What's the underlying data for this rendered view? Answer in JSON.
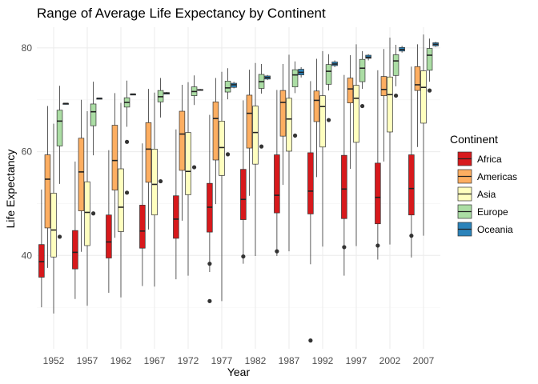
{
  "chart_data": {
    "type": "box",
    "title": "Range of Average Life Expectancy by Continent",
    "xlabel": "Year",
    "ylabel": "Life Expectancy",
    "ylim": [
      22,
      84
    ],
    "yticks": [
      40,
      60,
      80
    ],
    "grid": true,
    "legend_position": "right",
    "legend_title": "Continent",
    "categories": [
      "1952",
      "1957",
      "1962",
      "1967",
      "1972",
      "1977",
      "1982",
      "1987",
      "1992",
      "1997",
      "2002",
      "2007"
    ],
    "series": [
      {
        "name": "Africa",
        "color": "#d7191c",
        "boxes": [
          {
            "min": 30.0,
            "q1": 35.8,
            "median": 38.8,
            "q3": 42.1,
            "max": 52.7,
            "outliers": []
          },
          {
            "min": 31.6,
            "q1": 37.4,
            "median": 40.6,
            "q3": 44.8,
            "max": 58.1,
            "outliers": []
          },
          {
            "min": 32.8,
            "q1": 39.5,
            "median": 42.6,
            "q3": 47.8,
            "max": 60.3,
            "outliers": []
          },
          {
            "min": 34.1,
            "q1": 41.4,
            "median": 44.7,
            "q3": 49.7,
            "max": 61.6,
            "outliers": []
          },
          {
            "min": 35.4,
            "q1": 43.3,
            "median": 47.0,
            "q3": 51.5,
            "max": 64.3,
            "outliers": []
          },
          {
            "min": 36.8,
            "q1": 44.5,
            "median": 49.3,
            "q3": 53.9,
            "max": 67.1,
            "outliers": [
              31.2,
              38.4
            ]
          },
          {
            "min": 38.4,
            "q1": 46.9,
            "median": 50.8,
            "q3": 56.6,
            "max": 69.9,
            "outliers": [
              39.8
            ]
          },
          {
            "min": 39.9,
            "q1": 48.2,
            "median": 51.6,
            "q3": 59.4,
            "max": 71.9,
            "outliers": [
              40.8
            ]
          },
          {
            "min": 38.3,
            "q1": 48.0,
            "median": 52.4,
            "q3": 59.8,
            "max": 73.6,
            "outliers": [
              23.6
            ]
          },
          {
            "min": 36.1,
            "q1": 47.1,
            "median": 52.8,
            "q3": 59.3,
            "max": 74.8,
            "outliers": [
              41.6
            ]
          },
          {
            "min": 39.2,
            "q1": 46.1,
            "median": 51.2,
            "q3": 57.8,
            "max": 75.7,
            "outliers": [
              41.9
            ]
          },
          {
            "min": 39.6,
            "q1": 47.8,
            "median": 52.9,
            "q3": 59.4,
            "max": 76.4,
            "outliers": [
              43.8
            ]
          }
        ]
      },
      {
        "name": "Americas",
        "color": "#fdae61",
        "boxes": [
          {
            "min": 37.6,
            "q1": 45.3,
            "median": 54.7,
            "q3": 59.4,
            "max": 68.8,
            "outliers": []
          },
          {
            "min": 40.7,
            "q1": 48.6,
            "median": 56.1,
            "q3": 62.6,
            "max": 70.0,
            "outliers": []
          },
          {
            "min": 43.4,
            "q1": 52.6,
            "median": 58.3,
            "q3": 65.1,
            "max": 71.3,
            "outliers": []
          },
          {
            "min": 45.0,
            "q1": 54.1,
            "median": 60.5,
            "q3": 65.6,
            "max": 72.1,
            "outliers": []
          },
          {
            "min": 46.7,
            "q1": 56.4,
            "median": 63.4,
            "q3": 67.8,
            "max": 72.9,
            "outliers": []
          },
          {
            "min": 49.9,
            "q1": 58.4,
            "median": 66.4,
            "q3": 69.6,
            "max": 74.2,
            "outliers": []
          },
          {
            "min": 51.5,
            "q1": 60.7,
            "median": 67.4,
            "q3": 70.9,
            "max": 75.8,
            "outliers": []
          },
          {
            "min": 53.6,
            "q1": 63.0,
            "median": 69.5,
            "q3": 71.8,
            "max": 76.9,
            "outliers": []
          },
          {
            "min": 55.1,
            "q1": 65.8,
            "median": 69.9,
            "q3": 71.7,
            "max": 77.9,
            "outliers": []
          },
          {
            "min": 56.7,
            "q1": 69.4,
            "median": 72.1,
            "q3": 74.2,
            "max": 78.6,
            "outliers": []
          },
          {
            "min": 58.1,
            "q1": 70.8,
            "median": 72.0,
            "q3": 74.5,
            "max": 79.8,
            "outliers": []
          },
          {
            "min": 60.9,
            "q1": 71.8,
            "median": 72.9,
            "q3": 76.4,
            "max": 80.7,
            "outliers": []
          }
        ]
      },
      {
        "name": "Asia",
        "color": "#ffffbf",
        "boxes": [
          {
            "min": 28.8,
            "q1": 39.7,
            "median": 44.9,
            "q3": 52.0,
            "max": 65.4,
            "outliers": []
          },
          {
            "min": 30.3,
            "q1": 41.9,
            "median": 48.3,
            "q3": 54.2,
            "max": 67.8,
            "outliers": []
          },
          {
            "min": 31.9,
            "q1": 44.6,
            "median": 49.3,
            "q3": 56.7,
            "max": 69.4,
            "outliers": []
          },
          {
            "min": 34.0,
            "q1": 47.8,
            "median": 53.7,
            "q3": 60.5,
            "max": 71.4,
            "outliers": []
          },
          {
            "min": 36.1,
            "q1": 51.7,
            "median": 56.2,
            "q3": 63.7,
            "max": 73.4,
            "outliers": []
          },
          {
            "min": 31.2,
            "q1": 55.4,
            "median": 60.8,
            "q3": 65.9,
            "max": 75.4,
            "outliers": []
          },
          {
            "min": 39.9,
            "q1": 57.6,
            "median": 63.7,
            "q3": 68.8,
            "max": 77.1,
            "outliers": []
          },
          {
            "min": 40.8,
            "q1": 60.1,
            "median": 66.3,
            "q3": 70.3,
            "max": 78.7,
            "outliers": []
          },
          {
            "min": 41.7,
            "q1": 60.9,
            "median": 68.7,
            "q3": 70.8,
            "max": 79.4,
            "outliers": []
          },
          {
            "min": 41.8,
            "q1": 61.8,
            "median": 70.3,
            "q3": 72.8,
            "max": 80.7,
            "outliers": []
          },
          {
            "min": 42.1,
            "q1": 63.8,
            "median": 71.0,
            "q3": 74.4,
            "max": 82.0,
            "outliers": []
          },
          {
            "min": 43.8,
            "q1": 65.5,
            "median": 72.4,
            "q3": 75.6,
            "max": 82.6,
            "outliers": []
          }
        ]
      },
      {
        "name": "Europe",
        "color": "#abdda4",
        "boxes": [
          {
            "min": 53.8,
            "q1": 61.1,
            "median": 65.9,
            "q3": 68.0,
            "max": 72.7,
            "outliers": [
              43.6
            ]
          },
          {
            "min": 59.3,
            "q1": 65.0,
            "median": 67.7,
            "q3": 69.2,
            "max": 73.5,
            "outliers": [
              48.1
            ]
          },
          {
            "min": 64.8,
            "q1": 68.6,
            "median": 69.5,
            "q3": 70.4,
            "max": 73.7,
            "outliers": [
              52.1,
              61.9
            ]
          },
          {
            "min": 66.6,
            "q1": 69.6,
            "median": 70.6,
            "q3": 71.8,
            "max": 74.2,
            "outliers": [
              54.3
            ]
          },
          {
            "min": 69.0,
            "q1": 70.8,
            "median": 71.6,
            "q3": 72.5,
            "max": 74.7,
            "outliers": [
              57.0
            ]
          },
          {
            "min": 70.1,
            "q1": 71.5,
            "median": 72.3,
            "q3": 73.6,
            "max": 76.1,
            "outliers": [
              59.5
            ]
          },
          {
            "min": 71.2,
            "q1": 72.2,
            "median": 73.5,
            "q3": 74.9,
            "max": 76.9,
            "outliers": [
              61.0
            ]
          },
          {
            "min": 71.3,
            "q1": 72.5,
            "median": 74.8,
            "q3": 75.8,
            "max": 77.4,
            "outliers": [
              63.1
            ]
          },
          {
            "min": 71.8,
            "q1": 73.0,
            "median": 75.5,
            "q3": 76.8,
            "max": 78.8,
            "outliers": [
              66.1
            ]
          },
          {
            "min": 72.1,
            "q1": 73.5,
            "median": 76.1,
            "q3": 77.8,
            "max": 79.4,
            "outliers": [
              68.8
            ]
          },
          {
            "min": 72.6,
            "q1": 74.7,
            "median": 77.5,
            "q3": 78.7,
            "max": 80.6,
            "outliers": [
              70.8
            ]
          },
          {
            "min": 73.5,
            "q1": 75.7,
            "median": 78.6,
            "q3": 79.9,
            "max": 81.8,
            "outliers": [
              71.8
            ]
          }
        ]
      },
      {
        "name": "Oceania",
        "color": "#2b83ba",
        "boxes": [
          {
            "min": 69.1,
            "q1": 69.2,
            "median": 69.3,
            "q3": 69.3,
            "max": 69.4,
            "outliers": []
          },
          {
            "min": 70.3,
            "q1": 70.3,
            "median": 70.3,
            "q3": 70.3,
            "max": 70.3,
            "outliers": []
          },
          {
            "min": 70.9,
            "q1": 71.0,
            "median": 71.1,
            "q3": 71.1,
            "max": 71.2,
            "outliers": []
          },
          {
            "min": 71.1,
            "q1": 71.1,
            "median": 71.3,
            "q3": 71.4,
            "max": 71.5,
            "outliers": []
          },
          {
            "min": 71.9,
            "q1": 71.9,
            "median": 71.9,
            "q3": 72.0,
            "max": 72.1,
            "outliers": []
          },
          {
            "min": 72.2,
            "q1": 72.4,
            "median": 72.9,
            "q3": 73.2,
            "max": 73.5,
            "outliers": []
          },
          {
            "min": 73.8,
            "q1": 74.0,
            "median": 74.3,
            "q3": 74.6,
            "max": 74.8,
            "outliers": []
          },
          {
            "min": 74.3,
            "q1": 74.8,
            "median": 75.3,
            "q3": 75.9,
            "max": 76.3,
            "outliers": []
          },
          {
            "min": 76.3,
            "q1": 76.6,
            "median": 76.9,
            "q3": 77.3,
            "max": 77.6,
            "outliers": []
          },
          {
            "min": 77.6,
            "q1": 78.0,
            "median": 78.2,
            "q3": 78.6,
            "max": 78.8,
            "outliers": []
          },
          {
            "min": 79.1,
            "q1": 79.4,
            "median": 79.7,
            "q3": 80.1,
            "max": 80.4,
            "outliers": []
          },
          {
            "min": 80.2,
            "q1": 80.4,
            "median": 80.7,
            "q3": 81.0,
            "max": 81.2,
            "outliers": []
          }
        ]
      }
    ]
  }
}
